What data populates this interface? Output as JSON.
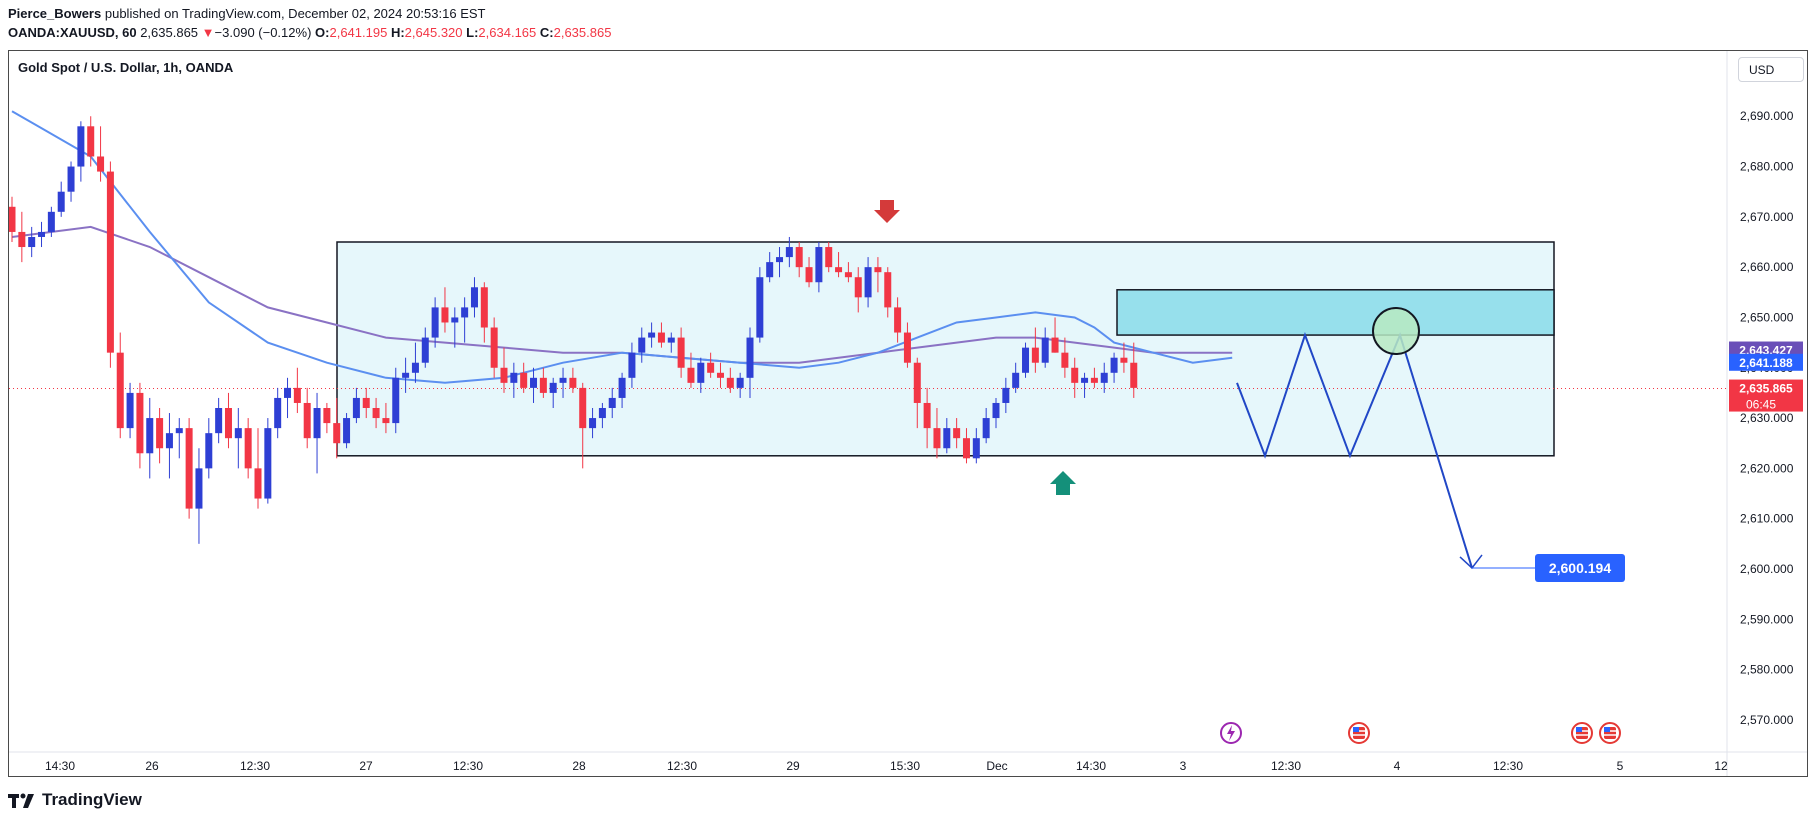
{
  "header": {
    "author": "Pierce_Bowers",
    "published": "published on TradingView.com, December 02, 2024 20:53:16 EST",
    "symbol": "OANDA:XAUUSD, 60",
    "last": "2,635.865",
    "arrow": "▼",
    "change": "−3.090 (−0.12%)",
    "o_label": "O:",
    "o": "2,641.195",
    "h_label": "H:",
    "h": "2,645.320",
    "l_label": "L:",
    "l": "2,634.165",
    "c_label": "C:",
    "c": "2,635.865"
  },
  "title": "Gold Spot / U.S. Dollar, 1h, OANDA",
  "currency": "USD",
  "footer": {
    "brand": "TradingView"
  },
  "colors": {
    "up": "#2e3fd4",
    "down": "#f23645",
    "ma_fast": "#5b8ff0",
    "ma_slow": "#8a72c4",
    "zone": "#e6f7fb",
    "zone_hi": "#97e0ec",
    "projection": "#2147c6",
    "price_tag": "#f23645",
    "purple_tag": "#6a4fb8",
    "blue_tag": "#2962ff",
    "target_tag": "#2962ff"
  },
  "chart_data": {
    "type": "candlestick",
    "title": "Gold Spot / U.S. Dollar, 1h, OANDA",
    "ylim": [
      2566,
      2698
    ],
    "y_ticks": [
      "2,570.000",
      "2,580.000",
      "2,590.000",
      "2,600.000",
      "2,610.000",
      "2,620.000",
      "2,630.000",
      "2,640.000",
      "2,650.000",
      "2,660.000",
      "2,670.000",
      "2,680.000",
      "2,690.000"
    ],
    "x_ticks": [
      "14:30",
      "26",
      "12:30",
      "27",
      "12:30",
      "28",
      "12:30",
      "29",
      "15:30",
      "Dec",
      "14:30",
      "3",
      "12:30",
      "4",
      "12:30",
      "5",
      "12"
    ],
    "price_labels": {
      "ma_slow": "2,643.427",
      "ma_fast": "2,641.188",
      "last": "2,635.865",
      "countdown": "06:45",
      "target": "2,600.194"
    },
    "candles": [
      [
        2672,
        2674,
        2665,
        2667
      ],
      [
        2667,
        2671,
        2661,
        2664
      ],
      [
        2664,
        2668,
        2662,
        2666
      ],
      [
        2666,
        2669,
        2664,
        2667
      ],
      [
        2667,
        2672,
        2666,
        2671
      ],
      [
        2671,
        2677,
        2670,
        2675
      ],
      [
        2675,
        2681,
        2673,
        2680
      ],
      [
        2680,
        2689,
        2677,
        2688
      ],
      [
        2688,
        2690,
        2680,
        2682
      ],
      [
        2682,
        2688,
        2677,
        2679
      ],
      [
        2679,
        2681,
        2640,
        2643
      ],
      [
        2643,
        2647,
        2626,
        2628
      ],
      [
        2628,
        2637,
        2626,
        2635
      ],
      [
        2635,
        2637,
        2620,
        2623
      ],
      [
        2623,
        2634,
        2618,
        2630
      ],
      [
        2630,
        2632,
        2621,
        2624
      ],
      [
        2624,
        2631,
        2618,
        2627
      ],
      [
        2627,
        2630,
        2622,
        2628
      ],
      [
        2628,
        2630,
        2610,
        2612
      ],
      [
        2612,
        2624,
        2605,
        2620
      ],
      [
        2620,
        2630,
        2618,
        2627
      ],
      [
        2627,
        2634,
        2625,
        2632
      ],
      [
        2632,
        2635,
        2624,
        2626
      ],
      [
        2626,
        2632,
        2620,
        2628
      ],
      [
        2628,
        2630,
        2618,
        2620
      ],
      [
        2620,
        2628,
        2612,
        2614
      ],
      [
        2614,
        2630,
        2613,
        2628
      ],
      [
        2628,
        2636,
        2626,
        2634
      ],
      [
        2634,
        2638,
        2630,
        2636
      ],
      [
        2636,
        2640,
        2631,
        2633
      ],
      [
        2633,
        2636,
        2624,
        2626
      ],
      [
        2626,
        2635,
        2619,
        2632
      ],
      [
        2632,
        2633,
        2627,
        2629
      ],
      [
        2629,
        2634,
        2622,
        2625
      ],
      [
        2625,
        2631,
        2624,
        2630
      ],
      [
        2630,
        2636,
        2629,
        2634
      ],
      [
        2634,
        2636,
        2630,
        2632
      ],
      [
        2632,
        2634,
        2628,
        2630
      ],
      [
        2630,
        2633,
        2627,
        2629
      ],
      [
        2629,
        2640,
        2627,
        2638
      ],
      [
        2638,
        2642,
        2635,
        2639
      ],
      [
        2639,
        2645,
        2637,
        2641
      ],
      [
        2641,
        2648,
        2640,
        2646
      ],
      [
        2646,
        2654,
        2644,
        2652
      ],
      [
        2652,
        2656,
        2647,
        2649
      ],
      [
        2649,
        2652,
        2644,
        2650
      ],
      [
        2650,
        2654,
        2645,
        2652
      ],
      [
        2652,
        2658,
        2650,
        2656
      ],
      [
        2656,
        2657,
        2645,
        2648
      ],
      [
        2648,
        2650,
        2638,
        2640
      ],
      [
        2640,
        2644,
        2635,
        2637
      ],
      [
        2637,
        2641,
        2634,
        2639
      ],
      [
        2639,
        2641,
        2635,
        2636
      ],
      [
        2636,
        2640,
        2633,
        2638
      ],
      [
        2638,
        2640,
        2634,
        2635
      ],
      [
        2635,
        2638,
        2632,
        2637
      ],
      [
        2637,
        2640,
        2634,
        2638
      ],
      [
        2638,
        2640,
        2635,
        2636
      ],
      [
        2636,
        2637,
        2620,
        2628
      ],
      [
        2628,
        2632,
        2626,
        2630
      ],
      [
        2630,
        2633,
        2628,
        2632
      ],
      [
        2632,
        2636,
        2630,
        2634
      ],
      [
        2634,
        2639,
        2632,
        2638
      ],
      [
        2638,
        2645,
        2636,
        2643
      ],
      [
        2643,
        2648,
        2641,
        2646
      ],
      [
        2646,
        2649,
        2644,
        2647
      ],
      [
        2647,
        2649,
        2644,
        2645
      ],
      [
        2645,
        2647,
        2643,
        2646
      ],
      [
        2646,
        2648,
        2638,
        2640
      ],
      [
        2640,
        2643,
        2636,
        2637
      ],
      [
        2637,
        2642,
        2635,
        2641
      ],
      [
        2641,
        2643,
        2638,
        2639
      ],
      [
        2639,
        2641,
        2636,
        2638
      ],
      [
        2638,
        2640,
        2635,
        2636
      ],
      [
        2636,
        2639,
        2634,
        2638
      ],
      [
        2638,
        2648,
        2634,
        2646
      ],
      [
        2646,
        2660,
        2645,
        2658
      ],
      [
        2658,
        2663,
        2657,
        2661
      ],
      [
        2661,
        2664,
        2658,
        2662
      ],
      [
        2662,
        2666,
        2660,
        2664
      ],
      [
        2664,
        2665,
        2658,
        2660
      ],
      [
        2660,
        2662,
        2656,
        2657
      ],
      [
        2657,
        2665,
        2655,
        2664
      ],
      [
        2664,
        2665,
        2659,
        2660
      ],
      [
        2660,
        2663,
        2658,
        2659
      ],
      [
        2659,
        2661,
        2657,
        2658
      ],
      [
        2658,
        2660,
        2651,
        2654
      ],
      [
        2654,
        2662,
        2652,
        2660
      ],
      [
        2660,
        2662,
        2655,
        2659
      ],
      [
        2659,
        2660,
        2650,
        2652
      ],
      [
        2652,
        2654,
        2645,
        2647
      ],
      [
        2647,
        2649,
        2640,
        2641
      ],
      [
        2641,
        2642,
        2628,
        2633
      ],
      [
        2633,
        2636,
        2624,
        2628
      ],
      [
        2628,
        2632,
        2622,
        2624
      ],
      [
        2624,
        2630,
        2623,
        2628
      ],
      [
        2628,
        2630,
        2624,
        2626
      ],
      [
        2626,
        2628,
        2621,
        2622
      ],
      [
        2622,
        2628,
        2621,
        2626
      ],
      [
        2626,
        2632,
        2625,
        2630
      ],
      [
        2630,
        2634,
        2628,
        2633
      ],
      [
        2633,
        2638,
        2631,
        2636
      ],
      [
        2636,
        2641,
        2635,
        2639
      ],
      [
        2639,
        2645,
        2638,
        2644
      ],
      [
        2644,
        2648,
        2639,
        2641
      ],
      [
        2641,
        2648,
        2640,
        2646
      ],
      [
        2646,
        2650,
        2643,
        2643
      ],
      [
        2643,
        2646,
        2638,
        2640
      ],
      [
        2640,
        2642,
        2634,
        2637
      ],
      [
        2637,
        2639,
        2634,
        2638
      ],
      [
        2638,
        2640,
        2636,
        2637
      ],
      [
        2637,
        2641,
        2635,
        2639
      ],
      [
        2639,
        2643,
        2637,
        2642
      ],
      [
        2642,
        2645,
        2639,
        2641
      ],
      [
        2641,
        2645,
        2634,
        2636
      ]
    ],
    "ma_fast": [
      [
        0,
        2691
      ],
      [
        8,
        2682
      ],
      [
        14,
        2667
      ],
      [
        20,
        2653
      ],
      [
        26,
        2645
      ],
      [
        32,
        2641
      ],
      [
        38,
        2638
      ],
      [
        44,
        2637
      ],
      [
        50,
        2638
      ],
      [
        56,
        2641
      ],
      [
        62,
        2643
      ],
      [
        68,
        2642
      ],
      [
        74,
        2641
      ],
      [
        80,
        2640
      ],
      [
        84,
        2641
      ],
      [
        88,
        2643
      ],
      [
        92,
        2646
      ],
      [
        96,
        2649
      ],
      [
        100,
        2650
      ],
      [
        104,
        2651
      ],
      [
        108,
        2650
      ],
      [
        110,
        2648
      ],
      [
        112,
        2645
      ],
      [
        116,
        2643
      ],
      [
        120,
        2641
      ],
      [
        124,
        2642
      ]
    ],
    "ma_slow": [
      [
        0,
        2666
      ],
      [
        8,
        2668
      ],
      [
        14,
        2664
      ],
      [
        20,
        2658
      ],
      [
        26,
        2652
      ],
      [
        32,
        2649
      ],
      [
        38,
        2646
      ],
      [
        44,
        2645
      ],
      [
        50,
        2644
      ],
      [
        56,
        2643
      ],
      [
        62,
        2643
      ],
      [
        68,
        2642
      ],
      [
        74,
        2641
      ],
      [
        80,
        2641
      ],
      [
        84,
        2642
      ],
      [
        88,
        2643
      ],
      [
        92,
        2644
      ],
      [
        96,
        2645
      ],
      [
        100,
        2646
      ],
      [
        104,
        2646
      ],
      [
        108,
        2645
      ],
      [
        112,
        2644
      ],
      [
        116,
        2643
      ],
      [
        120,
        2643
      ],
      [
        124,
        2643
      ]
    ],
    "box_range": {
      "top": 2665,
      "bottom": 2622.5
    },
    "box_highlight": {
      "top": 2655.5,
      "bottom": 2646.5
    },
    "projection": [
      [
        2637,
        0
      ],
      [
        2622.5,
        1
      ],
      [
        2646.5,
        2
      ],
      [
        2622.5,
        3
      ],
      [
        2646.5,
        4
      ],
      [
        2600.2,
        5
      ]
    ]
  }
}
